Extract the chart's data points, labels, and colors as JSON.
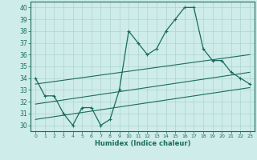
{
  "title": "",
  "xlabel": "Humidex (Indice chaleur)",
  "bg_color": "#ceecea",
  "grid_color": "#aed4d0",
  "line_color": "#1a6b5e",
  "xlim": [
    -0.5,
    23.5
  ],
  "ylim": [
    29.5,
    40.5
  ],
  "xticks": [
    0,
    1,
    2,
    3,
    4,
    5,
    6,
    7,
    8,
    9,
    10,
    11,
    12,
    13,
    14,
    15,
    16,
    17,
    18,
    19,
    20,
    21,
    22,
    23
  ],
  "yticks": [
    30,
    31,
    32,
    33,
    34,
    35,
    36,
    37,
    38,
    39,
    40
  ],
  "main_x": [
    0,
    1,
    2,
    3,
    4,
    5,
    6,
    7,
    8,
    9,
    10,
    11,
    12,
    13,
    14,
    15,
    16,
    17,
    18,
    19,
    20,
    21,
    22,
    23
  ],
  "main_y": [
    34,
    32.5,
    32.5,
    31,
    30,
    31.5,
    31.5,
    30,
    30.5,
    33,
    38,
    37,
    36,
    36.5,
    38,
    39,
    40,
    40,
    36.5,
    35.5,
    35.5,
    34.5,
    34,
    33.5
  ],
  "line2_x": [
    0,
    23
  ],
  "line2_y": [
    33.5,
    36.0
  ],
  "line3_x": [
    0,
    23
  ],
  "line3_y": [
    30.5,
    33.2
  ],
  "line4_x": [
    0,
    23
  ],
  "line4_y": [
    31.8,
    34.5
  ]
}
